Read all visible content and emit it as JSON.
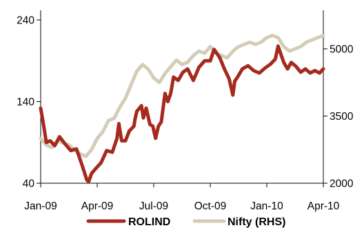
{
  "chart_data": {
    "type": "line",
    "x_tick_labels": [
      "Jan-09",
      "Apr-09",
      "Jul-09",
      "Oct-09",
      "Jan-10",
      "Apr-10"
    ],
    "x_tick_positions": [
      0,
      3,
      6,
      9,
      12,
      15
    ],
    "y_left": {
      "ticks": [
        "240",
        "140",
        "40"
      ],
      "tick_values": [
        240,
        140,
        40
      ],
      "range": [
        40,
        240
      ]
    },
    "y_right": {
      "ticks": [
        "5000",
        "3500",
        "2000"
      ],
      "tick_values": [
        5000,
        3500,
        2000
      ],
      "range": [
        2000,
        5860
      ]
    },
    "x_range": [
      0,
      15
    ],
    "grid": false,
    "legend_position": "bottom",
    "series": [
      {
        "name": "ROLIND",
        "axis": "left",
        "color": "#a52a1e",
        "x": [
          0,
          0.15,
          0.3,
          0.5,
          0.75,
          1.0,
          1.3,
          1.6,
          1.9,
          2.2,
          2.45,
          2.55,
          2.7,
          2.85,
          3.0,
          3.2,
          3.5,
          3.8,
          4.05,
          4.15,
          4.3,
          4.5,
          4.7,
          4.95,
          5.0,
          5.1,
          5.35,
          5.45,
          5.6,
          5.8,
          5.95,
          6.1,
          6.25,
          6.4,
          6.6,
          6.75,
          6.9,
          7.05,
          7.3,
          7.55,
          7.8,
          8.1,
          8.4,
          8.7,
          9.0,
          9.2,
          9.5,
          9.75,
          10.0,
          10.2,
          10.3,
          10.45,
          10.7,
          11.0,
          11.3,
          11.6,
          11.9,
          12.2,
          12.45,
          12.6,
          12.75,
          12.9,
          13.1,
          13.3,
          13.55,
          13.8,
          14.05,
          14.3,
          14.55,
          14.8,
          15.0
        ],
        "values": [
          132,
          112,
          90,
          92,
          86,
          97,
          88,
          80,
          82,
          62,
          44,
          42,
          52,
          56,
          60,
          65,
          80,
          78,
          95,
          113,
          92,
          92,
          104,
          110,
          118,
          128,
          135,
          120,
          132,
          112,
          110,
          95,
          110,
          115,
          150,
          140,
          150,
          170,
          166,
          176,
          180,
          166,
          182,
          190,
          190,
          204,
          194,
          180,
          168,
          148,
          165,
          170,
          180,
          184,
          178,
          175,
          181,
          186,
          192,
          208,
          198,
          188,
          180,
          188,
          183,
          176,
          180,
          175,
          178,
          175,
          180
        ]
      },
      {
        "name": "Nifty (RHS)",
        "axis": "right",
        "color": "#d3cdb8",
        "x": [
          0,
          0.3,
          0.6,
          0.9,
          1.2,
          1.5,
          1.8,
          2.1,
          2.4,
          2.7,
          3.0,
          3.3,
          3.6,
          3.9,
          4.2,
          4.5,
          4.8,
          5.1,
          5.4,
          5.7,
          6.0,
          6.3,
          6.6,
          6.9,
          7.2,
          7.5,
          7.8,
          8.1,
          8.4,
          8.7,
          9.0,
          9.3,
          9.6,
          9.9,
          10.2,
          10.5,
          10.8,
          11.1,
          11.4,
          11.7,
          12.0,
          12.3,
          12.6,
          12.9,
          13.2,
          13.5,
          13.8,
          14.1,
          14.4,
          14.7,
          15.0
        ],
        "values": [
          3000,
          2850,
          2800,
          2950,
          2900,
          2850,
          2750,
          2650,
          2600,
          2750,
          3000,
          3150,
          3400,
          3450,
          3700,
          3900,
          4200,
          4500,
          4650,
          4550,
          4350,
          4250,
          4450,
          4600,
          4750,
          4650,
          4700,
          4850,
          4950,
          4900,
          5050,
          4900,
          4850,
          4800,
          4950,
          5050,
          5100,
          5150,
          5100,
          5150,
          5250,
          5300,
          5250,
          5050,
          4950,
          5000,
          5050,
          5150,
          5200,
          5250,
          5300
        ]
      }
    ]
  }
}
